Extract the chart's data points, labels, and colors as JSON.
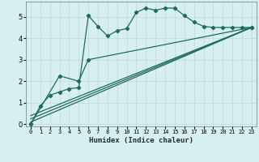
{
  "xlabel": "Humidex (Indice chaleur)",
  "bg_color": "#d8efef",
  "grid_color": "#c0d8d8",
  "line_color": "#1e6b5a",
  "xlim": [
    -0.5,
    23.5
  ],
  "ylim": [
    -0.1,
    5.7
  ],
  "yticks": [
    0,
    1,
    2,
    3,
    4,
    5
  ],
  "xticks": [
    0,
    1,
    2,
    3,
    4,
    5,
    6,
    7,
    8,
    9,
    10,
    11,
    12,
    13,
    14,
    15,
    16,
    17,
    18,
    19,
    20,
    21,
    22,
    23
  ],
  "series1_x": [
    0,
    1,
    2,
    3,
    4,
    5,
    6,
    7,
    8,
    9,
    10,
    11,
    12,
    13,
    14,
    15,
    16,
    17,
    18,
    19,
    20,
    21,
    22,
    23
  ],
  "series1_y": [
    0.0,
    0.85,
    1.35,
    1.5,
    1.65,
    1.7,
    5.05,
    4.55,
    4.1,
    4.35,
    4.45,
    5.2,
    5.4,
    5.3,
    5.4,
    5.4,
    5.05,
    4.75,
    4.55,
    4.5,
    4.5,
    4.5,
    4.5,
    4.5
  ],
  "series2_x": [
    0,
    3,
    5,
    6,
    23
  ],
  "series2_y": [
    0.0,
    2.25,
    2.0,
    3.0,
    4.5
  ],
  "series3_x": [
    0,
    23
  ],
  "series3_y": [
    0.1,
    4.5
  ],
  "series4_x": [
    0,
    23
  ],
  "series4_y": [
    0.25,
    4.5
  ],
  "series5_x": [
    0,
    23
  ],
  "series5_y": [
    0.4,
    4.5
  ],
  "xticklabels": [
    "0",
    "1",
    "2",
    "3",
    "4",
    "5",
    "6",
    "7",
    "8",
    "9",
    "10",
    "11",
    "12",
    "13",
    "14",
    "15",
    "16",
    "17",
    "18",
    "19",
    "20",
    "21",
    "22",
    "23"
  ]
}
